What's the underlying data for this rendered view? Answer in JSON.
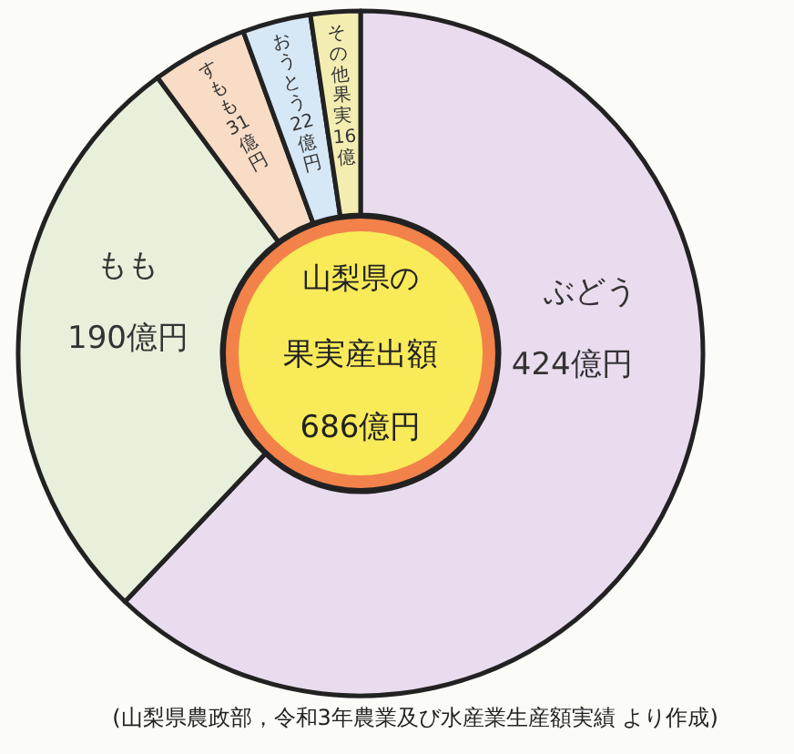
{
  "chart_data": {
    "type": "donut",
    "title": "山梨県の",
    "subtitle": "果実産出額",
    "categories": [
      "ぶどう",
      "もも",
      "すもも",
      "おうとう",
      "その他果実"
    ],
    "values": [
      424,
      190,
      31,
      22,
      16
    ],
    "value_labels": [
      "424億円",
      "190億円",
      "31億円",
      "22億円",
      "16億"
    ],
    "colors": [
      "#eadcef",
      "#e8f0dc",
      "#f8dcc6",
      "#d6e7f5",
      "#f3edb2"
    ],
    "annotations": [
      "686億円",
      "(山梨県農政部，令和3年農業及び水産業生産額実績 より作成)"
    ],
    "legend": false
  }
}
